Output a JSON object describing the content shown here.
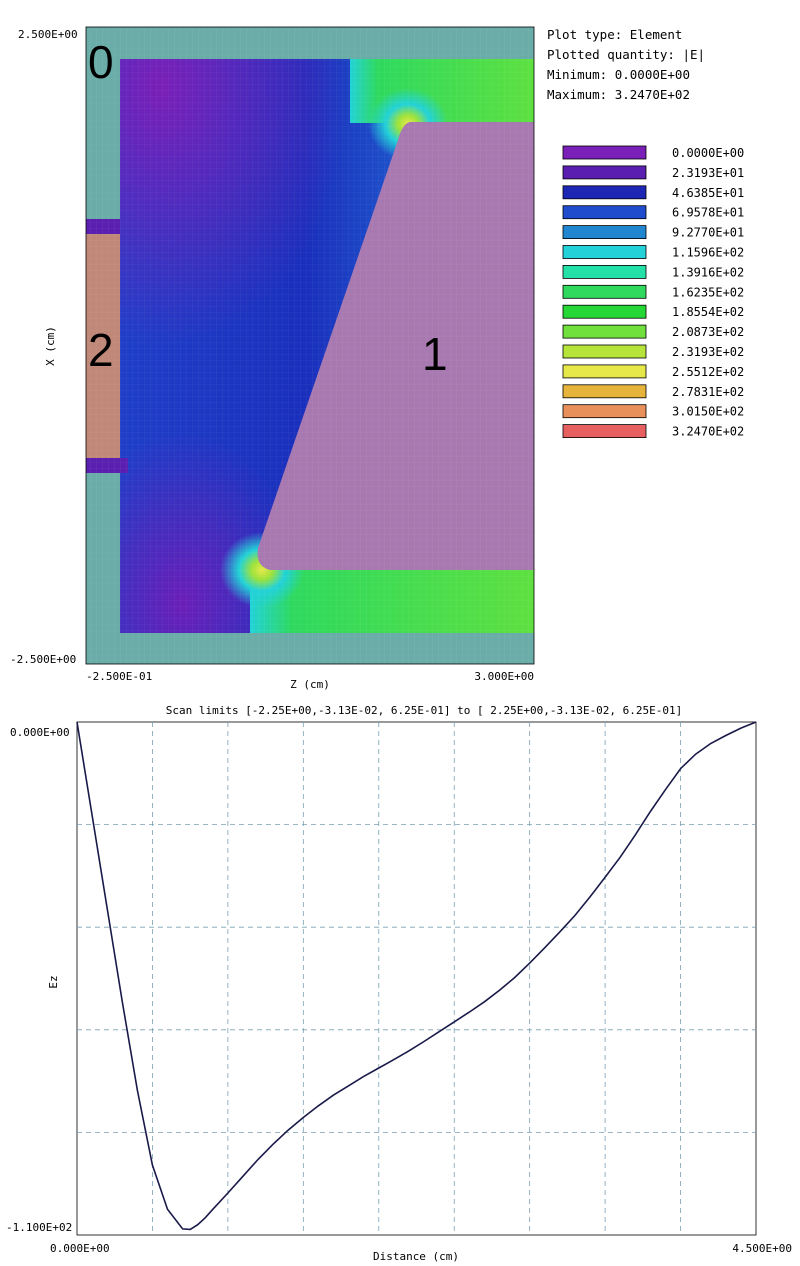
{
  "field_map": {
    "info": {
      "plot_type": "Plot type: Element",
      "quantity": "Plotted quantity: |E|",
      "minimum": "Minimum:  0.0000E+00",
      "maximum": "Maximum:  3.2470E+02"
    },
    "axes": {
      "xlabel": "Z (cm)",
      "ylabel": "X (cm)",
      "x_min_label": "-2.500E-01",
      "x_max_label": "3.000E+00",
      "y_max_label": "2.500E+00",
      "y_min_label": "-2.500E+00"
    },
    "regions": [
      {
        "label": "0"
      },
      {
        "label": "1"
      },
      {
        "label": "2"
      }
    ],
    "legend": [
      {
        "value": "0.0000E+00",
        "color": "#7a1fb8"
      },
      {
        "value": "2.3193E+01",
        "color": "#5a1fb0"
      },
      {
        "value": "4.6385E+01",
        "color": "#1e26b4"
      },
      {
        "value": "6.9578E+01",
        "color": "#1f4ccc"
      },
      {
        "value": "9.2770E+01",
        "color": "#1f86cf"
      },
      {
        "value": "1.1596E+02",
        "color": "#22d2d8"
      },
      {
        "value": "1.3916E+02",
        "color": "#22e0a6"
      },
      {
        "value": "1.6235E+02",
        "color": "#2ed95e"
      },
      {
        "value": "1.8554E+02",
        "color": "#26d836"
      },
      {
        "value": "2.0873E+02",
        "color": "#6fe03c"
      },
      {
        "value": "2.3193E+02",
        "color": "#b6e43a"
      },
      {
        "value": "2.5512E+02",
        "color": "#e6e84a"
      },
      {
        "value": "2.7831E+02",
        "color": "#e6b43a"
      },
      {
        "value": "3.0150E+02",
        "color": "#e8905a"
      },
      {
        "value": "3.2470E+02",
        "color": "#e66060"
      }
    ],
    "colors": {
      "background_region": "#6aaca8",
      "electrode_1": "#a878b0",
      "electrode_2": "#c08878",
      "grid": "#b8c8d0"
    }
  },
  "scan_title": "Scan limits  [-2.25E+00,-3.13E-02, 6.25E-01] to [ 2.25E+00,-3.13E-02, 6.25E-01]",
  "chart_data": {
    "type": "line",
    "xlabel": "Distance (cm)",
    "ylabel": "Ez",
    "xlim": [
      0.0,
      4.5
    ],
    "ylim": [
      -110,
      0
    ],
    "x_min_label": "0.000E+00",
    "x_max_label": "4.500E+00",
    "y_max_label": "0.000E+00",
    "y_min_label": "-1.100E+02",
    "grid": true,
    "grid_x_divisions": 9,
    "grid_y_divisions": 5,
    "line_color": "#1a1a4a",
    "x": [
      0.0,
      0.1,
      0.2,
      0.3,
      0.4,
      0.5,
      0.6,
      0.7,
      0.75,
      0.8,
      0.85,
      0.9,
      1.0,
      1.1,
      1.2,
      1.3,
      1.4,
      1.5,
      1.6,
      1.7,
      1.8,
      1.9,
      2.0,
      2.1,
      2.2,
      2.3,
      2.4,
      2.5,
      2.6,
      2.7,
      2.8,
      2.9,
      3.0,
      3.1,
      3.2,
      3.3,
      3.4,
      3.5,
      3.6,
      3.7,
      3.8,
      3.9,
      4.0,
      4.1,
      4.2,
      4.3,
      4.4,
      4.5
    ],
    "values": [
      0.0,
      -20.0,
      -40.0,
      -60.0,
      -79.0,
      -95.0,
      -104.5,
      -108.7,
      -108.8,
      -107.8,
      -106.3,
      -104.5,
      -101.0,
      -97.4,
      -93.8,
      -90.5,
      -87.5,
      -84.8,
      -82.3,
      -80.0,
      -78.0,
      -76.0,
      -74.2,
      -72.4,
      -70.5,
      -68.5,
      -66.4,
      -64.3,
      -62.2,
      -60.0,
      -57.5,
      -54.8,
      -51.7,
      -48.4,
      -45.0,
      -41.5,
      -37.5,
      -33.3,
      -29.0,
      -24.2,
      -19.2,
      -14.5,
      -10.0,
      -6.9,
      -4.6,
      -2.9,
      -1.3,
      0.0
    ]
  }
}
